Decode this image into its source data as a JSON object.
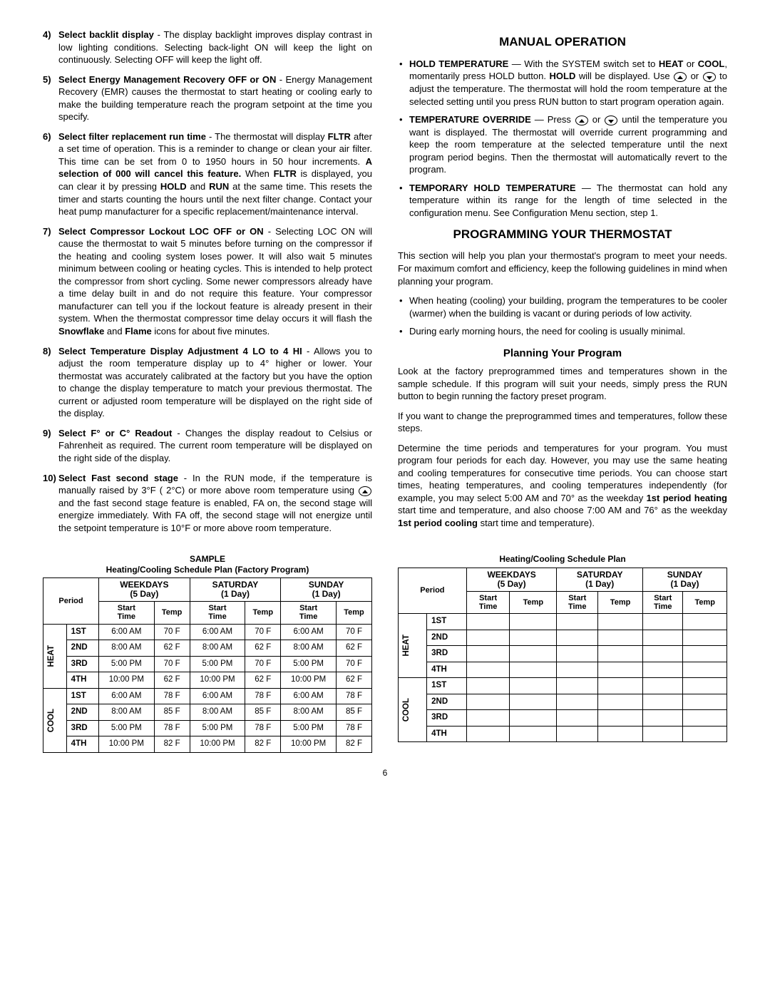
{
  "leftList": [
    {
      "n": "4)",
      "title": "Select backlit display",
      "body": " - The display backlight improves display contrast in low lighting conditions. Selecting back-light ON will keep the light on continuously. Selecting OFF will keep the light off."
    },
    {
      "n": "5)",
      "title": "Select Energy Management Recovery OFF or ON",
      "body": " - Energy Management Recovery (EMR) causes the thermostat to start heating or cooling early to make the building temperature reach the program setpoint at the time you specify."
    },
    {
      "n": "6)",
      "title": "Select filter replacement run time",
      "body_html": " - The thermostat will display <b>FLTR</b> after a set time of operation. This is a reminder to change or clean your air filter. This time can be set from 0 to 1950 hours in 50 hour increments. <b>A selection of 000 will cancel this feature.</b> When <b>FLTR</b> is displayed, you can clear it by pressing <b>HOLD</b> and <b>RUN</b> at the same time. This resets the timer and starts counting the hours until the next filter change. Contact your heat pump manufacturer for a specific replacement/maintenance interval."
    },
    {
      "n": "7)",
      "title": "Select Compressor Lockout LOC OFF or ON",
      "body_html": " - Selecting LOC ON will cause the thermostat to wait 5 minutes before turning on the compressor if the heating and cooling system loses power. It will also wait 5 minutes minimum between cooling or heating cycles. This is intended to help protect the compressor from short cycling. Some newer compressors already have a time delay built in and do not require this feature. Your compressor manufacturer can tell you if the lockout feature is already present in their system. When the thermostat compressor time delay occurs it will flash the <b>Snowflake</b> and <b>Flame</b> icons for about five minutes."
    },
    {
      "n": "8)",
      "title": "Select Temperature Display Adjustment 4 LO to 4 HI",
      "body": " - Allows you to adjust the room temperature display up to 4° higher or lower. Your thermostat was accurately calibrated at the factory but you have the option to change the display temperature to match your previous thermostat. The current or adjusted room temperature will be displayed on the right side of the display."
    },
    {
      "n": "9)",
      "title": "Select F° or C° Readout",
      "body": " - Changes the display readout to Celsius or Fahrenheit as required. The current room temperature will be displayed on the right side of the display."
    },
    {
      "n": "10)",
      "title": "Select Fast second stage",
      "body_html": " - In the RUN mode, if the temperature is manually raised by 3°F ( 2°C) or more above room temperature using <span class='icon-inline up' data-name='up-arrow-icon' data-interactable='false'></span> and the fast second stage feature is enabled, FA on, the second stage will energize immediately. With FA off, the second stage will not energize until the setpoint temperature is 10°F or more above room temperature."
    }
  ],
  "manual": {
    "heading": "MANUAL OPERATION",
    "items": [
      {
        "title": "HOLD TEMPERATURE",
        "body_html": " — With the SYSTEM switch set to <b>HEAT</b> or <b>COOL</b>, momentarily press HOLD button. <b>HOLD</b> will be displayed. Use <span class='icon-inline up' data-name='up-arrow-icon' data-interactable='false'></span> or <span class='icon-inline down' data-name='down-arrow-icon' data-interactable='false'></span> to adjust the temperature. The thermostat will hold the room temperature at the selected setting until you press RUN button to start program operation again."
      },
      {
        "title": "TEMPERATURE OVERRIDE",
        "body_html": " — Press <span class='icon-inline up' data-name='up-arrow-icon' data-interactable='false'></span> or <span class='icon-inline down' data-name='down-arrow-icon' data-interactable='false'></span> until the temperature you want is displayed. The thermostat will override current programming and keep the room temperature at the selected temperature until the next program period begins. Then the thermostat will automatically revert to the program."
      },
      {
        "title": "TEMPORARY HOLD TEMPERATURE",
        "body": " — The thermostat can hold any temperature within its range for the length of time selected in the configuration menu. See Configuration Menu section, step 1."
      }
    ]
  },
  "programming": {
    "heading": "PROGRAMMING YOUR THERMOSTAT",
    "intro": "This section will help you plan your thermostat's program to meet your needs. For maximum comfort and efficiency, keep the following guidelines in mind when planning your program.",
    "bullets": [
      "When heating (cooling) your building, program the temperatures to be cooler (warmer) when the building is vacant or during periods of low activity.",
      "During early morning hours, the need for cooling is usually minimal."
    ],
    "sub": "Planning Your Program",
    "p1": "Look at the factory preprogrammed times and temperatures shown in the sample schedule. If this program will suit your needs, simply press the RUN button to begin running the factory preset program.",
    "p2": "If you want to change the preprogrammed times and temperatures, follow these steps.",
    "p3_html": "Determine the time periods and temperatures for your program. You must program four periods for each day. However, you may use the same heating and cooling temperatures for consecutive time periods. You can choose start times, heating temperatures, and cooling temperatures independently (for example, you may select 5:00 AM and 70° as the weekday <b>1st period heating</b> start time and temperature, and also choose 7:00 AM and 76° as the weekday <b>1st period cooling</b> start time and temperature)."
  },
  "table1": {
    "title1": "SAMPLE",
    "title2": "Heating/Cooling Schedule Plan (Factory Program)",
    "dayHeaders": [
      {
        "l1": "WEEKDAYS",
        "l2": "(5 Day)"
      },
      {
        "l1": "SATURDAY",
        "l2": "(1 Day)"
      },
      {
        "l1": "SUNDAY",
        "l2": "(1 Day)"
      }
    ],
    "subHeaders": [
      "Start Time",
      "Temp",
      "Start Time",
      "Temp",
      "Start Time",
      "Temp"
    ],
    "periodLabel": "Period",
    "sections": [
      {
        "name": "HEAT",
        "rows": [
          {
            "p": "1ST",
            "cells": [
              "6:00 AM",
              "70 F",
              "6:00 AM",
              "70 F",
              "6:00 AM",
              "70 F"
            ]
          },
          {
            "p": "2ND",
            "cells": [
              "8:00 AM",
              "62 F",
              "8:00 AM",
              "62 F",
              "8:00 AM",
              "62 F"
            ]
          },
          {
            "p": "3RD",
            "cells": [
              "5:00 PM",
              "70 F",
              "5:00 PM",
              "70 F",
              "5:00 PM",
              "70 F"
            ]
          },
          {
            "p": "4TH",
            "cells": [
              "10:00 PM",
              "62 F",
              "10:00 PM",
              "62 F",
              "10:00 PM",
              "62 F"
            ]
          }
        ]
      },
      {
        "name": "COOL",
        "rows": [
          {
            "p": "1ST",
            "cells": [
              "6:00 AM",
              "78 F",
              "6:00 AM",
              "78 F",
              "6:00 AM",
              "78 F"
            ]
          },
          {
            "p": "2ND",
            "cells": [
              "8:00 AM",
              "85 F",
              "8:00 AM",
              "85 F",
              "8:00 AM",
              "85 F"
            ]
          },
          {
            "p": "3RD",
            "cells": [
              "5:00 PM",
              "78 F",
              "5:00 PM",
              "78 F",
              "5:00 PM",
              "78 F"
            ]
          },
          {
            "p": "4TH",
            "cells": [
              "10:00 PM",
              "82 F",
              "10:00 PM",
              "82 F",
              "10:00 PM",
              "82 F"
            ]
          }
        ]
      }
    ]
  },
  "table2": {
    "title": "Heating/Cooling Schedule Plan",
    "dayHeaders": [
      {
        "l1": "WEEKDAYS",
        "l2": "(5 Day)"
      },
      {
        "l1": "SATURDAY",
        "l2": "(1 Day)"
      },
      {
        "l1": "SUNDAY",
        "l2": "(1 Day)"
      }
    ],
    "subHeaders": [
      "Start Time",
      "Temp",
      "Start Time",
      "Temp",
      "Start Time",
      "Temp"
    ],
    "periodLabel": "Period",
    "sections": [
      {
        "name": "HEAT",
        "rows": [
          {
            "p": "1ST",
            "cells": [
              "",
              "",
              "",
              "",
              "",
              ""
            ]
          },
          {
            "p": "2ND",
            "cells": [
              "",
              "",
              "",
              "",
              "",
              ""
            ]
          },
          {
            "p": "3RD",
            "cells": [
              "",
              "",
              "",
              "",
              "",
              ""
            ]
          },
          {
            "p": "4TH",
            "cells": [
              "",
              "",
              "",
              "",
              "",
              ""
            ]
          }
        ]
      },
      {
        "name": "COOL",
        "rows": [
          {
            "p": "1ST",
            "cells": [
              "",
              "",
              "",
              "",
              "",
              ""
            ]
          },
          {
            "p": "2ND",
            "cells": [
              "",
              "",
              "",
              "",
              "",
              ""
            ]
          },
          {
            "p": "3RD",
            "cells": [
              "",
              "",
              "",
              "",
              "",
              ""
            ]
          },
          {
            "p": "4TH",
            "cells": [
              "",
              "",
              "",
              "",
              "",
              ""
            ]
          }
        ]
      }
    ]
  },
  "pageNumber": "6"
}
